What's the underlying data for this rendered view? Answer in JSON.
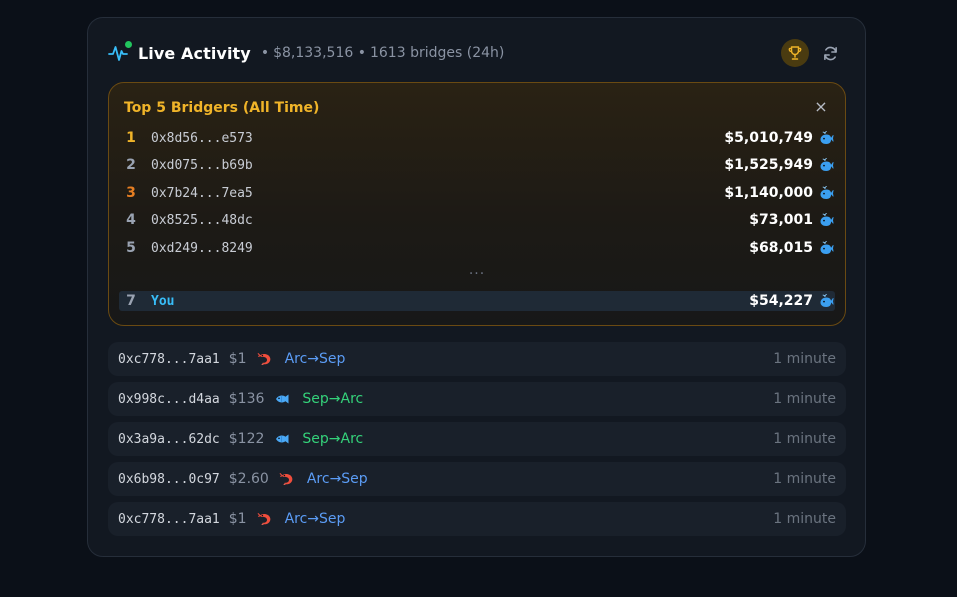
{
  "header": {
    "title": "Live Activity",
    "volume": "$8,133,516",
    "bridges": "1613 bridges (24h)",
    "separator": "•"
  },
  "leaderboard": {
    "title": "Top 5 Bridgers (All Time)",
    "close_glyph": "×",
    "rows": [
      {
        "rank": "1",
        "address": "0x8d56...e573",
        "amount": "$5,010,749",
        "rank_color": "#f0b429"
      },
      {
        "rank": "2",
        "address": "0xd075...b69b",
        "amount": "$1,525,949",
        "rank_color": "#9aa3b2"
      },
      {
        "rank": "3",
        "address": "0x7b24...7ea5",
        "amount": "$1,140,000",
        "rank_color": "#e67e22"
      },
      {
        "rank": "4",
        "address": "0x8525...48dc",
        "amount": "$73,001",
        "rank_color": "#9aa3b2"
      },
      {
        "rank": "5",
        "address": "0xd249...8249",
        "amount": "$68,015",
        "rank_color": "#9aa3b2"
      }
    ],
    "ellipsis": "···",
    "you": {
      "rank": "7",
      "label": "You",
      "amount": "$54,227"
    },
    "amount_icon": "whale-icon"
  },
  "activity": [
    {
      "address": "0xc778...7aa1",
      "amount": "$1",
      "icon": "shrimp-icon",
      "route": "Arc→Sep",
      "direction": "arc-to-sep",
      "time": "1 minute"
    },
    {
      "address": "0x998c...d4aa",
      "amount": "$136",
      "icon": "fish-icon",
      "route": "Sep→Arc",
      "direction": "sep-to-arc",
      "time": "1 minute"
    },
    {
      "address": "0x3a9a...62dc",
      "amount": "$122",
      "icon": "fish-icon",
      "route": "Sep→Arc",
      "direction": "sep-to-arc",
      "time": "1 minute"
    },
    {
      "address": "0x6b98...0c97",
      "amount": "$2.60",
      "icon": "shrimp-icon",
      "route": "Arc→Sep",
      "direction": "arc-to-sep",
      "time": "1 minute"
    },
    {
      "address": "0xc778...7aa1",
      "amount": "$1",
      "icon": "shrimp-icon",
      "route": "Arc→Sep",
      "direction": "arc-to-sep",
      "time": "1 minute"
    }
  ],
  "colors": {
    "accent_gold": "#f0b429",
    "you_blue": "#38bdf8",
    "route_arc_to_sep": "#5b9cf5",
    "route_sep_to_arc": "#34d27a",
    "live_dot": "#22c55e"
  }
}
